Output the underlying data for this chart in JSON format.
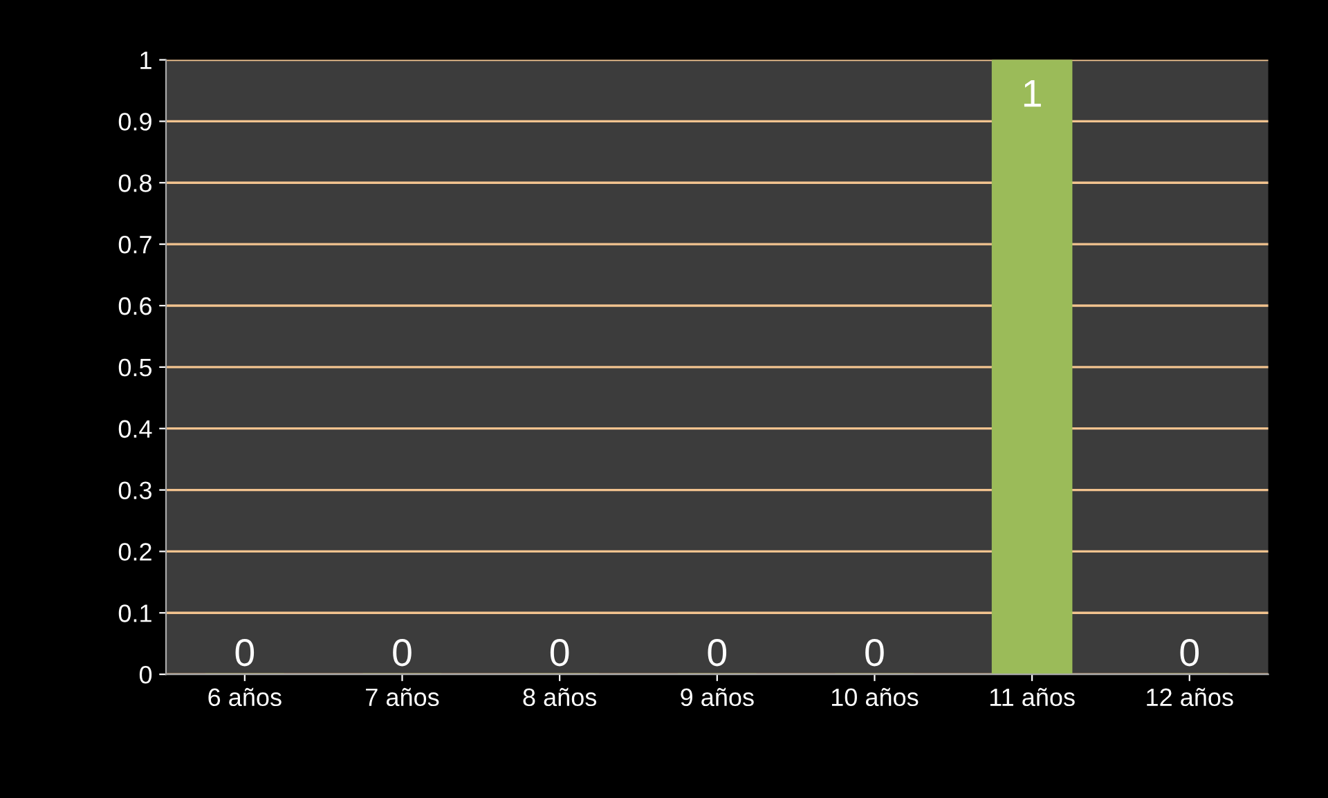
{
  "chart_data": {
    "type": "bar",
    "categories": [
      "6 años",
      "7 años",
      "8 años",
      "9 años",
      "10 años",
      "11 años",
      "12 años"
    ],
    "values": [
      0,
      0,
      0,
      0,
      0,
      1,
      0
    ],
    "color": "#9bbb59",
    "ylim": [
      0,
      1
    ],
    "yticks": [
      0,
      0.1,
      0.2,
      0.3,
      0.4,
      0.5,
      0.6,
      0.7,
      0.8,
      0.9,
      1
    ],
    "grid": "y",
    "data_labels": true
  }
}
